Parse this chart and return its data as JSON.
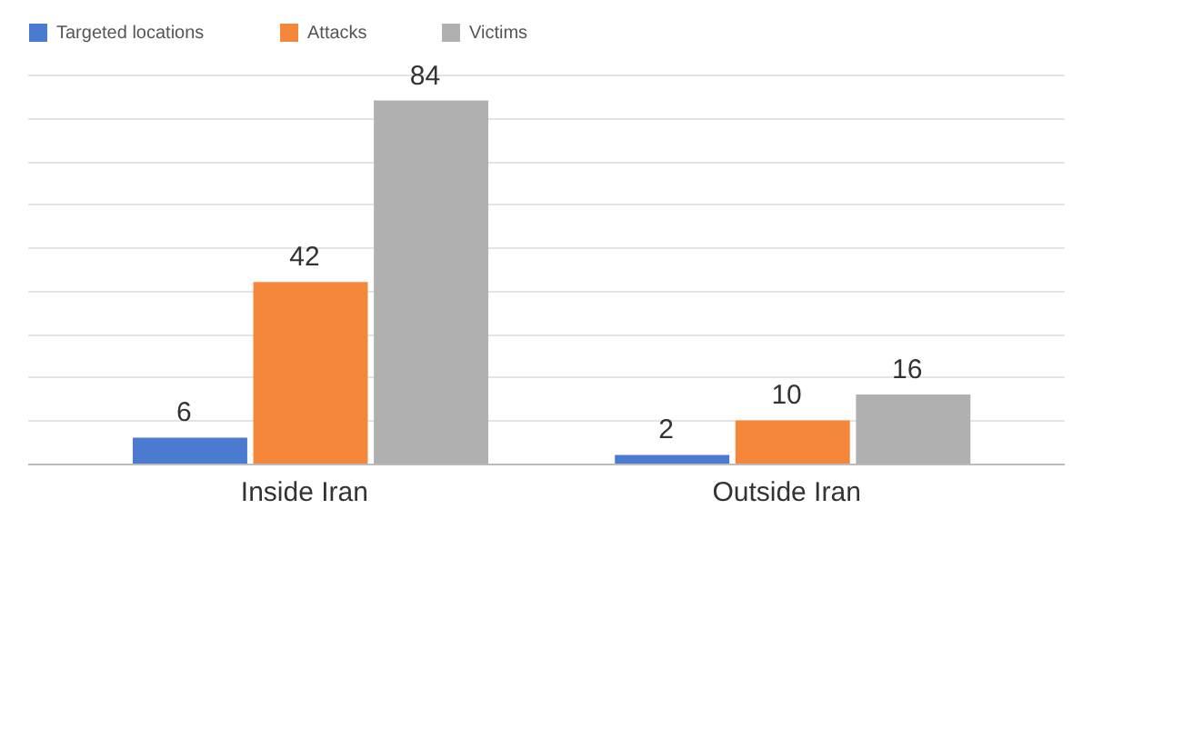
{
  "chart_data": {
    "type": "bar",
    "categories": [
      "Inside Iran",
      "Outside Iran"
    ],
    "series": [
      {
        "name": "Targeted locations",
        "color": "#4a7bd0",
        "values": [
          6,
          2
        ]
      },
      {
        "name": "Attacks",
        "color": "#f4873a",
        "values": [
          42,
          10
        ]
      },
      {
        "name": "Victims",
        "color": "#b0b0b0",
        "values": [
          84,
          16
        ]
      }
    ],
    "grid": "y",
    "legend": "top",
    "data_labels": true,
    "tick_labels": "x"
  }
}
